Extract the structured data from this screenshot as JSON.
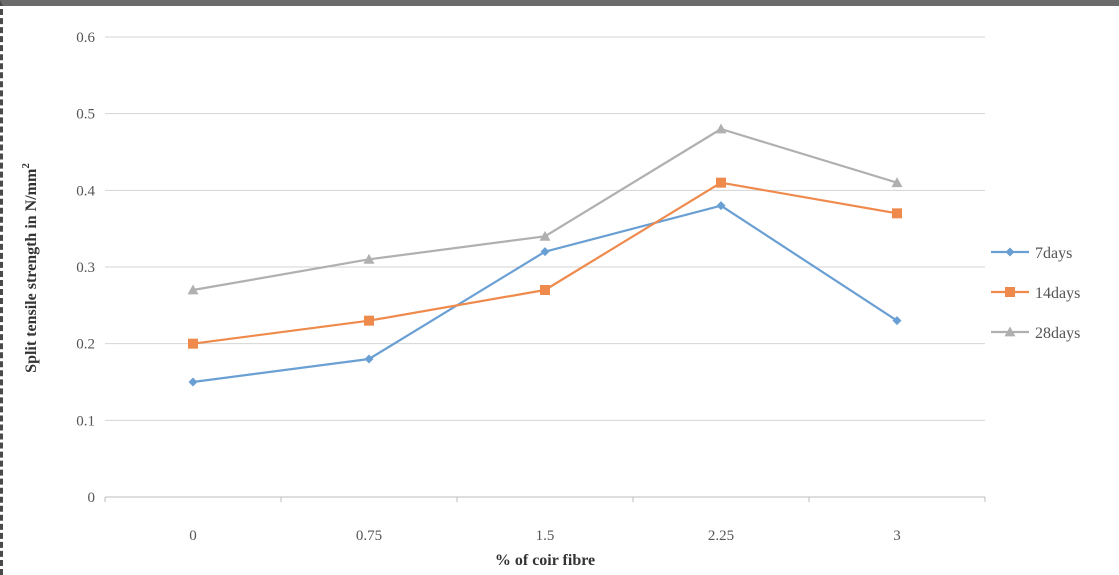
{
  "chart_data": {
    "type": "line",
    "categories": [
      "0",
      "0.75",
      "1.5",
      "2.25",
      "3"
    ],
    "series": [
      {
        "name": "7days",
        "values": [
          0.15,
          0.18,
          0.32,
          0.38,
          0.23
        ],
        "color": "#6a9fd4",
        "marker": "diamond"
      },
      {
        "name": "14days",
        "values": [
          0.2,
          0.23,
          0.27,
          0.41,
          0.37
        ],
        "color": "#ee8a4c",
        "marker": "square"
      },
      {
        "name": "28days",
        "values": [
          0.27,
          0.31,
          0.34,
          0.48,
          0.41
        ],
        "color": "#b0b0b0",
        "marker": "triangle"
      }
    ],
    "y_ticks": [
      "0",
      "0.1",
      "0.2",
      "0.3",
      "0.4",
      "0.5",
      "0.6"
    ],
    "ylim": [
      0,
      0.6
    ],
    "xlabel": "% of coir fibre",
    "ylabel": "Split tensile strength in N/mm",
    "ylabel_superscript": "2",
    "grid": "horizontal",
    "legend_position": "right"
  }
}
